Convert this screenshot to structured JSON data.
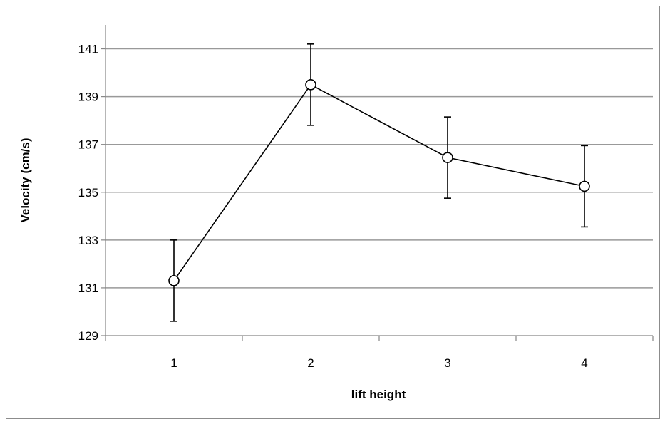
{
  "chart_data": {
    "type": "line",
    "title": "",
    "xlabel": "lift height",
    "ylabel": "Velocity (cm/s)",
    "categories": [
      "1",
      "2",
      "3",
      "4"
    ],
    "series": [
      {
        "values": [
          131.3,
          139.5,
          136.45,
          135.25
        ],
        "error": [
          1.7,
          1.7,
          1.7,
          1.7
        ]
      }
    ],
    "ylim": [
      129,
      142
    ],
    "yticks": [
      "129",
      "131",
      "133",
      "135",
      "137",
      "139",
      "141"
    ],
    "grid": "horizontal",
    "legend": "none",
    "colors": {
      "line": "#000000",
      "grid": "#999999",
      "axis": "#868686",
      "marker_fill": "#ffffff"
    }
  }
}
